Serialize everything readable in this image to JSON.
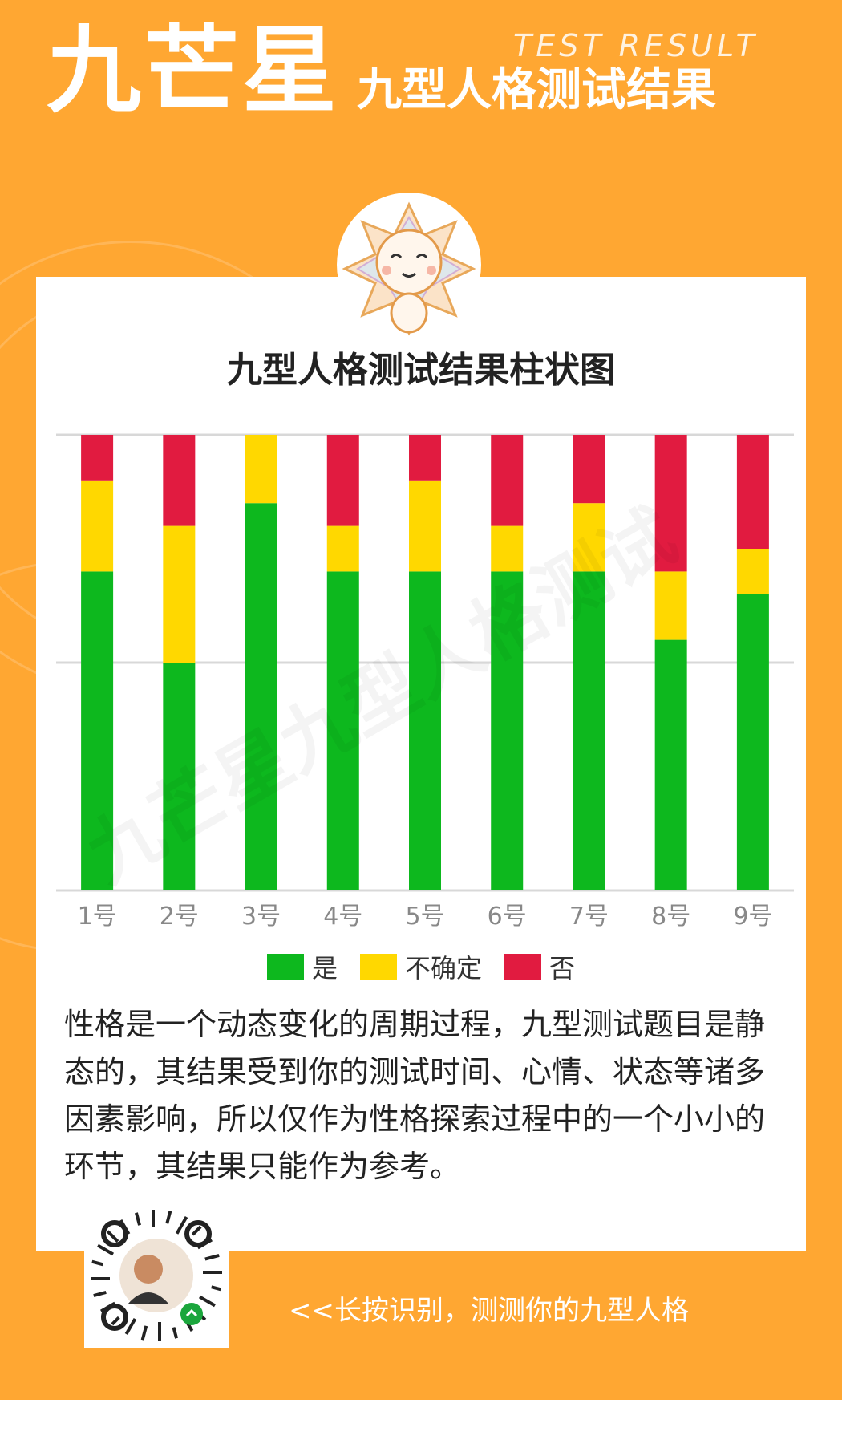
{
  "header": {
    "brand": "九芒星",
    "subtitle": "九型人格测试结果",
    "en_title": "TEST RESULT"
  },
  "colors": {
    "background": "#FFA732",
    "yes": "#0DB81E",
    "unsure": "#FFD800",
    "no": "#E11B40"
  },
  "chart_data": {
    "type": "bar",
    "stacked": true,
    "title": "九型人格测试结果柱状图",
    "categories": [
      "1号",
      "2号",
      "3号",
      "4号",
      "5号",
      "6号",
      "7号",
      "8号",
      "9号"
    ],
    "series": [
      {
        "name": "是",
        "color": "#0DB81E",
        "values": [
          14,
          10,
          17,
          14,
          14,
          14,
          14,
          11,
          13
        ]
      },
      {
        "name": "不确定",
        "color": "#FFD800",
        "values": [
          4,
          6,
          3,
          2,
          4,
          2,
          3,
          3,
          2
        ]
      },
      {
        "name": "否",
        "color": "#E11B40",
        "values": [
          2,
          4,
          0,
          4,
          2,
          4,
          3,
          6,
          5
        ]
      }
    ],
    "ylim": [
      0,
      20
    ],
    "grid": true,
    "legend": "bottom"
  },
  "note": "性格是一个动态变化的周期过程，九型测试题目是静态的，其结果受到你的测试时间、心情、状态等诸多因素影响，所以仅作为性格探索过程中的一个小小的环节，其结果只能作为参考。",
  "watermark": "九芒星九型人格测试",
  "cta": "<<长按识别，测测你的九型人格"
}
